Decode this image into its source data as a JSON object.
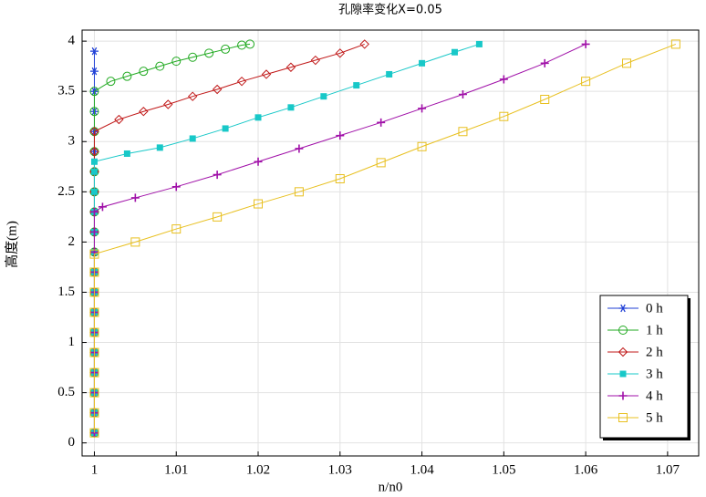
{
  "chart_data": {
    "type": "line",
    "title": "孔隙率变化X=0.05",
    "x_label": "n/n0",
    "y_label": "高度(m)",
    "xlim": [
      0.9985,
      1.0738
    ],
    "ylim": [
      -0.13,
      4.11
    ],
    "xticks": [
      1,
      1.01,
      1.02,
      1.03,
      1.04,
      1.05,
      1.06,
      1.07
    ],
    "yticks": [
      0,
      0.5,
      1,
      1.5,
      2,
      2.5,
      3,
      3.5,
      4
    ],
    "grid": true,
    "legend": "lower right",
    "series": [
      {
        "name": "0 h",
        "color": "#1f3fd6",
        "marker": "star",
        "x": [
          1,
          1,
          1,
          1,
          1,
          1,
          1,
          1,
          1,
          1,
          1,
          1,
          1,
          1,
          1,
          1,
          1,
          1,
          1,
          1
        ],
        "values": [
          0.1,
          0.3,
          0.5,
          0.7,
          0.9,
          1.1,
          1.3,
          1.5,
          1.7,
          1.9,
          2.1,
          2.3,
          2.5,
          2.7,
          2.9,
          3.1,
          3.3,
          3.5,
          3.7,
          3.9
        ]
      },
      {
        "name": "1 h",
        "color": "#22aa22",
        "marker": "circle",
        "x": [
          1,
          1,
          1,
          1,
          1,
          1,
          1,
          1,
          1,
          1,
          1,
          1,
          1,
          1,
          1,
          1,
          1,
          1,
          1.002,
          1.004,
          1.006,
          1.008,
          1.01,
          1.012,
          1.014,
          1.016,
          1.018,
          1.019
        ],
        "values": [
          0.1,
          0.3,
          0.5,
          0.7,
          0.9,
          1.1,
          1.3,
          1.5,
          1.7,
          1.9,
          2.1,
          2.3,
          2.5,
          2.7,
          2.9,
          3.1,
          3.3,
          3.5,
          3.6,
          3.65,
          3.7,
          3.75,
          3.8,
          3.84,
          3.88,
          3.92,
          3.96,
          3.97
        ]
      },
      {
        "name": "2 h",
        "color": "#c01818",
        "marker": "diamond",
        "x": [
          1,
          1,
          1,
          1,
          1,
          1,
          1,
          1,
          1,
          1,
          1,
          1,
          1,
          1,
          1,
          1,
          1.003,
          1.006,
          1.009,
          1.012,
          1.015,
          1.018,
          1.021,
          1.024,
          1.027,
          1.03,
          1.033
        ],
        "values": [
          0.1,
          0.3,
          0.5,
          0.7,
          0.9,
          1.1,
          1.3,
          1.5,
          1.7,
          1.9,
          2.1,
          2.3,
          2.5,
          2.7,
          2.9,
          3.1,
          3.22,
          3.3,
          3.37,
          3.45,
          3.52,
          3.6,
          3.67,
          3.74,
          3.81,
          3.88,
          3.97
        ]
      },
      {
        "name": "3 h",
        "color": "#18c8c8",
        "marker": "filled-square",
        "x": [
          1,
          1,
          1,
          1,
          1,
          1,
          1,
          1,
          1,
          1,
          1,
          1,
          1,
          1,
          1,
          1.004,
          1.008,
          1.012,
          1.016,
          1.02,
          1.024,
          1.028,
          1.032,
          1.036,
          1.04,
          1.044,
          1.047
        ],
        "values": [
          0.1,
          0.3,
          0.5,
          0.7,
          0.9,
          1.1,
          1.3,
          1.5,
          1.7,
          1.9,
          2.1,
          2.3,
          2.5,
          2.7,
          2.8,
          2.88,
          2.94,
          3.03,
          3.13,
          3.24,
          3.34,
          3.45,
          3.56,
          3.67,
          3.78,
          3.89,
          3.97
        ]
      },
      {
        "name": "4 h",
        "color": "#a010a8",
        "marker": "plus",
        "x": [
          1,
          1,
          1,
          1,
          1,
          1,
          1,
          1,
          1,
          1,
          1,
          1,
          1.001,
          1.005,
          1.01,
          1.015,
          1.02,
          1.025,
          1.03,
          1.035,
          1.04,
          1.045,
          1.05,
          1.055,
          1.06
        ],
        "values": [
          0.1,
          0.3,
          0.5,
          0.7,
          0.9,
          1.1,
          1.3,
          1.5,
          1.7,
          1.9,
          2.1,
          2.3,
          2.35,
          2.44,
          2.55,
          2.67,
          2.8,
          2.93,
          3.06,
          3.19,
          3.33,
          3.47,
          3.62,
          3.78,
          3.97
        ]
      },
      {
        "name": "5 h",
        "color": "#e8c020",
        "marker": "square",
        "x": [
          1,
          1,
          1,
          1,
          1,
          1,
          1,
          1,
          1,
          1,
          1.005,
          1.01,
          1.015,
          1.02,
          1.025,
          1.03,
          1.035,
          1.04,
          1.045,
          1.05,
          1.055,
          1.06,
          1.065,
          1.071
        ],
        "values": [
          0.1,
          0.3,
          0.5,
          0.7,
          0.9,
          1.1,
          1.3,
          1.5,
          1.7,
          1.88,
          2.0,
          2.13,
          2.25,
          2.38,
          2.5,
          2.63,
          2.79,
          2.95,
          3.1,
          3.25,
          3.42,
          3.6,
          3.78,
          3.97
        ]
      }
    ]
  }
}
